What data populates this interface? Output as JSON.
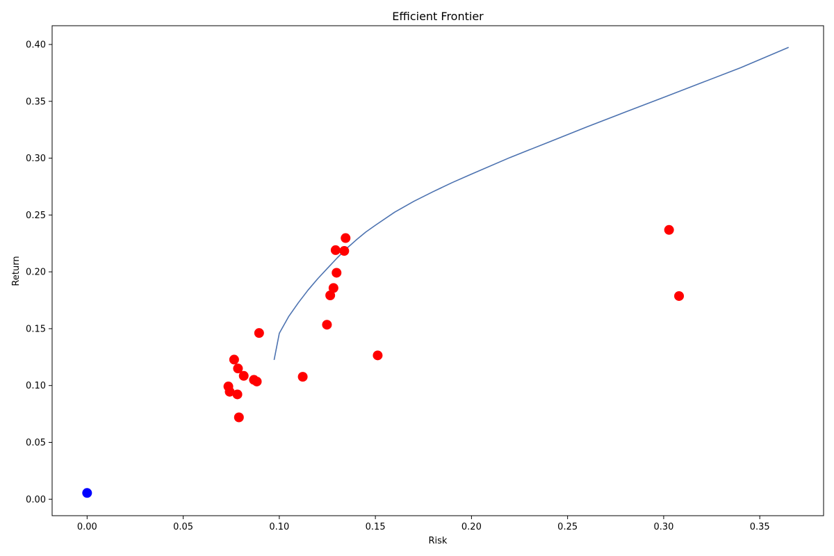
{
  "chart_data": {
    "type": "scatter",
    "title": "Efficient Frontier",
    "xlabel": "Risk",
    "ylabel": "Return",
    "xlim": [
      -0.0182,
      0.3832
    ],
    "ylim": [
      -0.0145,
      0.4165
    ],
    "x_ticks": [
      0.0,
      0.05,
      0.1,
      0.15,
      0.2,
      0.25,
      0.3,
      0.35
    ],
    "x_tick_labels": [
      "0.00",
      "0.05",
      "0.10",
      "0.15",
      "0.20",
      "0.25",
      "0.30",
      "0.35"
    ],
    "y_ticks": [
      0.0,
      0.05,
      0.1,
      0.15,
      0.2,
      0.25,
      0.3,
      0.35,
      0.4
    ],
    "y_tick_labels": [
      "0.00",
      "0.05",
      "0.10",
      "0.15",
      "0.20",
      "0.25",
      "0.30",
      "0.35",
      "0.40"
    ],
    "grid": false,
    "colors": {
      "frontier": "#4c72b0",
      "assets": "#ff0000",
      "risk_free": "#0000ff"
    },
    "frontier": {
      "x": [
        0.0973,
        0.1,
        0.105,
        0.11,
        0.115,
        0.12,
        0.125,
        0.13,
        0.135,
        0.14,
        0.145,
        0.15,
        0.16,
        0.17,
        0.18,
        0.19,
        0.2,
        0.22,
        0.24,
        0.26,
        0.28,
        0.3,
        0.32,
        0.34,
        0.365
      ],
      "y": [
        0.1225,
        0.146,
        0.161,
        0.173,
        0.184,
        0.194,
        0.203,
        0.212,
        0.2205,
        0.228,
        0.235,
        0.241,
        0.2525,
        0.262,
        0.2705,
        0.2785,
        0.286,
        0.3005,
        0.314,
        0.3275,
        0.3405,
        0.3535,
        0.3665,
        0.3795,
        0.3975
      ]
    },
    "assets": {
      "x": [
        0.0735,
        0.0742,
        0.0765,
        0.0785,
        0.0782,
        0.079,
        0.0815,
        0.0868,
        0.0883,
        0.0895,
        0.1122,
        0.1248,
        0.1265,
        0.1282,
        0.1293,
        0.1298,
        0.1338,
        0.1345,
        0.1512,
        0.3028,
        0.308
      ],
      "y": [
        0.0992,
        0.0945,
        0.1228,
        0.115,
        0.0922,
        0.072,
        0.1085,
        0.105,
        0.1035,
        0.1462,
        0.1077,
        0.1535,
        0.1793,
        0.1858,
        0.2191,
        0.1992,
        0.2184,
        0.2297,
        0.1265,
        0.2369,
        0.1787
      ]
    },
    "risk_free": {
      "x": [
        0.0
      ],
      "y": [
        0.0055
      ]
    }
  }
}
